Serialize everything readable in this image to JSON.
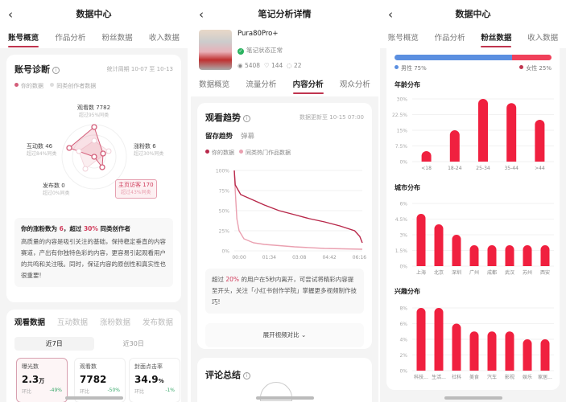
{
  "panel1": {
    "title": "数据中心",
    "tabs": [
      "账号概览",
      "作品分析",
      "粉丝数据",
      "收入数据"
    ],
    "diagnosis": {
      "title": "账号诊断",
      "period": "统计周期 10-07 至 10-13",
      "legend": [
        "你的数据",
        "同类创作者数据"
      ],
      "axes": [
        {
          "label": "观看数 7782",
          "sub": "超过95%同类"
        },
        {
          "label": "涨粉数 6",
          "sub": "超过30%同类"
        },
        {
          "label": "主页访客 170",
          "sub": "超过43%同类"
        },
        {
          "label": "发布数 0",
          "sub": "超过0%同类"
        },
        {
          "label": "互动数 46",
          "sub": "超过84%同类"
        }
      ],
      "tip_head_pre": "你的涨粉数为 ",
      "tip_head_v1": "6",
      "tip_head_mid": "，超过 ",
      "tip_head_v2": "30%",
      "tip_head_post": " 同类创作者",
      "tip_body": "高质量的内容是吸引关注的基础，保持稳定垂直的内容赛道，产出有你独特色彩的内容，更容易引起观看用户的共鸣和关注哦。同时，保证内容的原创性和真实性也很重要!"
    },
    "data_tabs": [
      "观看数据",
      "互动数据",
      "涨粉数据",
      "发布数据"
    ],
    "ranges": [
      "近7日",
      "近30日"
    ],
    "metrics": [
      {
        "label": "曝光数",
        "value": "2.3",
        "unit": "万",
        "cmp": "环比",
        "change": "-49%"
      },
      {
        "label": "观看数",
        "value": "7782",
        "unit": "",
        "cmp": "环比",
        "change": "-50%"
      },
      {
        "label": "封面点击率",
        "value": "34.9",
        "unit": "%",
        "cmp": "环比",
        "change": "-1%"
      }
    ]
  },
  "panel2": {
    "title": "笔记分析详情",
    "note_name": "Pura80Pro+",
    "status": "笔记状态正常",
    "stats": {
      "views": "5408",
      "likes": "144",
      "comments": "22"
    },
    "tabs": [
      "数据概览",
      "流量分析",
      "内容分析",
      "观众分析"
    ],
    "trend_title": "观看趋势",
    "updated": "数据更新至 10-15 07:00",
    "subtabs": [
      "留存趋势",
      "弹幕"
    ],
    "tip_pre": "超过 ",
    "tip_val": "20%",
    "tip_post": " 的用户在5秒内离开，可尝试将精彩内容提至开头，关注「小红书创作学院」掌握更多视频制作技巧!",
    "expand": "展开视频对比",
    "comment_title": "评论总结"
  },
  "panel3": {
    "title": "数据中心",
    "tabs": [
      "账号概览",
      "作品分析",
      "粉丝数据",
      "收入数据"
    ],
    "gender": {
      "male_label": "男性 75%",
      "female_label": "女性 25%",
      "male": 75,
      "female": 25,
      "male_color": "#5b8fe0",
      "female_color": "#f0405a"
    }
  },
  "chart_data": [
    {
      "id": "retention",
      "type": "line",
      "x_unit": "seconds",
      "xticks": [
        "00:00",
        "01:34",
        "03:08",
        "04:42",
        "06:16"
      ],
      "yticks": [
        "100%",
        "75%",
        "50%",
        "25%",
        "0%"
      ],
      "ylim": [
        0,
        100
      ],
      "series": [
        {
          "name": "你的数据",
          "color": "#b8284a",
          "points": [
            [
              0,
              100
            ],
            [
              3,
              82
            ],
            [
              20,
              70
            ],
            [
              60,
              63
            ],
            [
              94,
              57
            ],
            [
              140,
              50
            ],
            [
              188,
              45
            ],
            [
              235,
              40
            ],
            [
              282,
              36
            ],
            [
              330,
              31
            ],
            [
              376,
              25
            ],
            [
              392,
              18
            ],
            [
              400,
              10
            ]
          ]
        },
        {
          "name": "同类热门作品数据",
          "color": "#eaa0b0",
          "points": [
            [
              0,
              100
            ],
            [
              3,
              75
            ],
            [
              8,
              40
            ],
            [
              15,
              25
            ],
            [
              30,
              15
            ],
            [
              60,
              10
            ],
            [
              94,
              8
            ],
            [
              188,
              5
            ],
            [
              282,
              3
            ],
            [
              400,
              2
            ]
          ]
        }
      ]
    },
    {
      "id": "age",
      "type": "bar",
      "title": "年龄分布",
      "categories": [
        "<18",
        "18-24",
        "25-34",
        "35-44",
        ">44"
      ],
      "values": [
        5,
        15,
        30,
        28,
        20
      ],
      "yticks": [
        "30%",
        "22.5%",
        "15%",
        "7.5%",
        "0%"
      ],
      "ylim": [
        0,
        30
      ],
      "color": "#f0203f"
    },
    {
      "id": "city",
      "type": "bar",
      "title": "城市分布",
      "categories": [
        "上海",
        "北京",
        "深圳",
        "广州",
        "成都",
        "武汉",
        "苏州",
        "西安"
      ],
      "values": [
        5,
        4,
        3,
        2,
        2,
        2,
        2,
        2
      ],
      "yticks": [
        "6%",
        "4.5%",
        "3%",
        "1.5%",
        "0%"
      ],
      "ylim": [
        0,
        6
      ],
      "color": "#f0203f"
    },
    {
      "id": "interest",
      "type": "bar",
      "title": "兴趣分布",
      "categories": [
        "科技...",
        "生活...",
        "社科",
        "美食",
        "汽车",
        "影视",
        "娱乐",
        "家居..."
      ],
      "values": [
        8,
        8,
        6,
        5,
        5,
        5,
        4,
        4
      ],
      "yticks": [
        "8%",
        "6%",
        "4%",
        "2%",
        "0%"
      ],
      "ylim": [
        0,
        8
      ],
      "color": "#f0203f"
    }
  ]
}
